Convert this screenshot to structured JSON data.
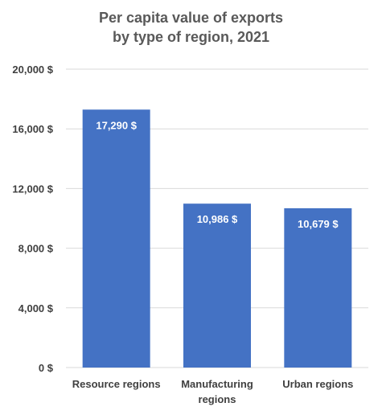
{
  "chart_data": {
    "type": "bar",
    "title_lines": [
      "Per capita value of exports",
      "by type of region, 2021"
    ],
    "categories": [
      [
        "Resource regions"
      ],
      [
        "Manufacturing",
        "regions"
      ],
      [
        "Urban regions"
      ]
    ],
    "values": [
      17290,
      10986,
      10679
    ],
    "data_labels": [
      "17,290 $",
      "10,986 $",
      "10,679 $"
    ],
    "ylim": [
      0,
      20000
    ],
    "yticks": [
      0,
      4000,
      8000,
      12000,
      16000,
      20000
    ],
    "ytick_labels": [
      "0 $",
      "4,000 $",
      "8,000 $",
      "12,000 $",
      "16,000 $",
      "20,000 $"
    ],
    "grid": true,
    "legend": "none",
    "bar_color": "#4472c4",
    "grid_color": "#d9d9d9"
  }
}
